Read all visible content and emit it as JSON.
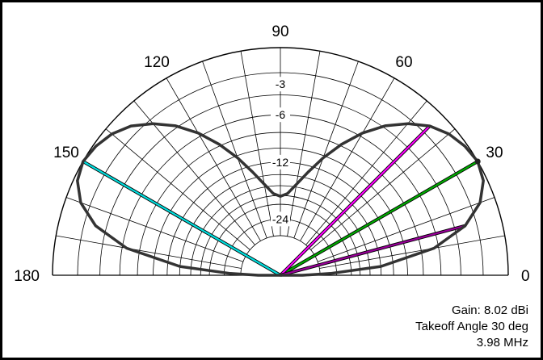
{
  "chart_data": {
    "type": "polar-elevation-pattern",
    "angle_labels": [
      "0",
      "30",
      "60",
      "90",
      "120",
      "150",
      "180"
    ],
    "angle_values": [
      0,
      30,
      60,
      90,
      120,
      150,
      180
    ],
    "ring_labels": [
      "-3",
      "-6",
      "-12",
      "-24"
    ],
    "ring_db": [
      -3,
      -6,
      -12,
      -24
    ],
    "max_gain_dbi": 8.02,
    "takeoff_angle_deg": 30,
    "pattern": {
      "elevation_deg": [
        0,
        2,
        5,
        10,
        15,
        20,
        25,
        30,
        35,
        40,
        45,
        50,
        55,
        60,
        65,
        70,
        75,
        80,
        85,
        90,
        95,
        100,
        105,
        110,
        115,
        120,
        125,
        130,
        135,
        140,
        145,
        150,
        155,
        160,
        165,
        170,
        175,
        178,
        180
      ],
      "gain_db": [
        -40,
        -26,
        -14,
        -6.5,
        -3.0,
        -1.2,
        -0.3,
        0,
        -0.2,
        -0.6,
        -1.3,
        -2.4,
        -3.8,
        -5.6,
        -7.8,
        -10.3,
        -13.0,
        -15.5,
        -17.5,
        -18.2,
        -17.5,
        -15.5,
        -13.0,
        -10.3,
        -7.8,
        -5.6,
        -3.8,
        -2.4,
        -1.3,
        -0.6,
        -0.2,
        0,
        -0.3,
        -1.2,
        -3.0,
        -6.5,
        -14,
        -26,
        -40
      ]
    },
    "markers": [
      {
        "name": "takeoff",
        "angle_deg": 30,
        "color": "#00aa00"
      },
      {
        "name": "magenta-upper",
        "angle_deg": 45,
        "color": "#ff00ff"
      },
      {
        "name": "magenta-lower",
        "angle_deg": 15,
        "color": "#990099"
      },
      {
        "name": "cyan",
        "angle_deg": 150,
        "color": "#00dddd"
      }
    ],
    "colors": {
      "pattern": "#333333",
      "grid": "#000000"
    }
  },
  "info": {
    "gain": "Gain: 8.02 dBi",
    "takeoff": "Takeoff Angle 30 deg",
    "frequency": "3.98 MHz"
  }
}
